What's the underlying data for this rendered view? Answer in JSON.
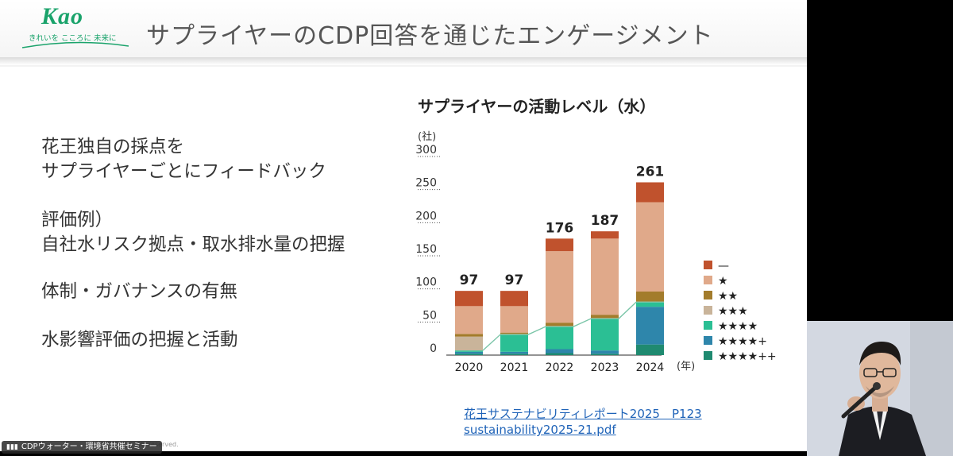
{
  "logo": {
    "name": "Kao",
    "tagline": "きれいを こころに 未来に"
  },
  "slide": {
    "title": "サプライヤーのCDP回答を通じたエンゲージメント"
  },
  "bullets": [
    {
      "lines": [
        "花王独自の採点を",
        "サプライヤーごとにフィードバック"
      ]
    },
    {
      "lines": [
        "評価例）",
        "自社水リスク拠点・取水排水量の把握"
      ]
    },
    {
      "lines": [
        "体制・ガバナンスの有無"
      ]
    },
    {
      "lines": [
        "水影響評価の把握と活動"
      ]
    }
  ],
  "chart_data": {
    "type": "stacked-bar",
    "title": "サプライヤーの活動レベル（水）",
    "ylabel": "(社)",
    "xlabel": "(年)",
    "ylim": [
      0,
      300
    ],
    "yticks": [
      0,
      50,
      100,
      150,
      200,
      250,
      300
    ],
    "categories": [
      "2020",
      "2021",
      "2022",
      "2023",
      "2024"
    ],
    "totals": [
      97,
      97,
      176,
      187,
      261
    ],
    "series": [
      {
        "name": "★★★★++",
        "color": "#1f8a70",
        "values": [
          2,
          2,
          3,
          2,
          16
        ]
      },
      {
        "name": "★★★★+",
        "color": "#2e86ab",
        "values": [
          3,
          3,
          6,
          5,
          57
        ]
      },
      {
        "name": "★★★★",
        "color": "#2bbf94",
        "values": [
          2,
          26,
          34,
          48,
          7
        ]
      },
      {
        "name": "★★★",
        "color": "#c9b49a",
        "values": [
          21,
          1,
          1,
          1,
          1
        ]
      },
      {
        "name": "★★",
        "color": "#a37c2c",
        "values": [
          4,
          2,
          5,
          5,
          15
        ]
      },
      {
        "name": "★",
        "color": "#e0a98a",
        "values": [
          42,
          40,
          108,
          115,
          135
        ]
      },
      {
        "name": "—",
        "color": "#c0522d",
        "values": [
          23,
          23,
          19,
          11,
          30
        ]
      }
    ],
    "trend_line": {
      "color": "#7ac5a8",
      "values": [
        7,
        31,
        43,
        55,
        80
      ]
    }
  },
  "links": {
    "report": "花王サステナビリティレポート2025　P123",
    "pdf": "sustainability2025-21.pdf"
  },
  "footer": {
    "copyright": "hts  reserved."
  },
  "meeting": {
    "label": "CDPウォーター・環境省共催セミナー"
  }
}
